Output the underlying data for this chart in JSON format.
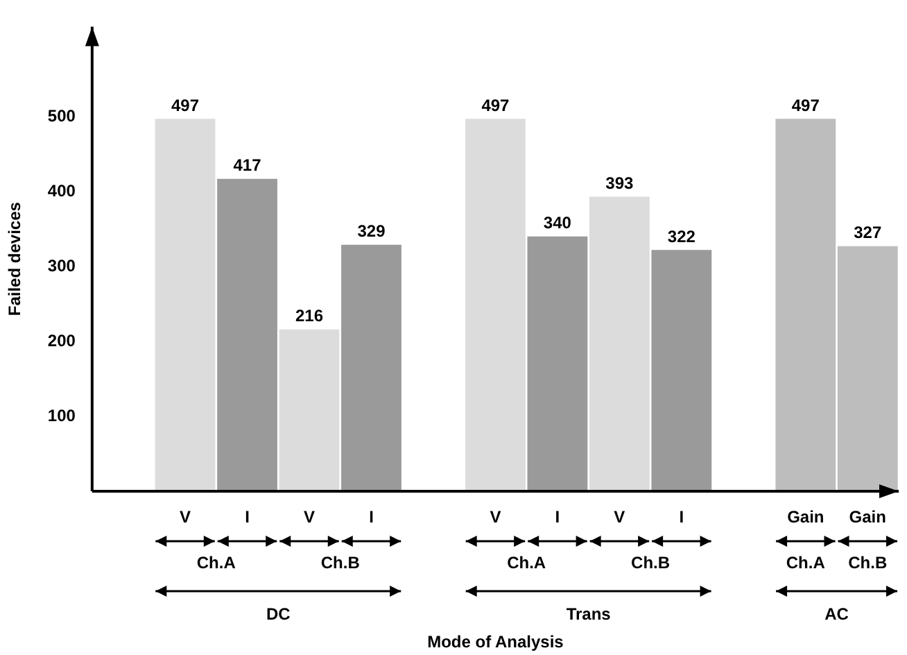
{
  "chart_data": {
    "type": "bar",
    "ylabel": "Failed devices",
    "categories": [
      null,
      "V",
      "I",
      "V",
      "I",
      null,
      "V",
      "I",
      "V",
      "I",
      null,
      "Gain",
      "Gain"
    ],
    "values": [
      null,
      497,
      417,
      216,
      329,
      null,
      497,
      340,
      393,
      322,
      null,
      497,
      327
    ],
    "colors": [
      null,
      "#dcdcdc",
      "#9a9a9a",
      "#dcdcdc",
      "#9a9a9a",
      null,
      "#dcdcdc",
      "#9a9a9a",
      "#dcdcdc",
      "#9a9a9a",
      null,
      "#bdbdbd",
      "#bdbdbd"
    ],
    "ylim": [
      0,
      620
    ],
    "yticks": [
      100,
      200,
      300,
      400,
      500
    ],
    "grid": false,
    "legend": false,
    "data_labels": true,
    "annotations": [
      "Ch.A",
      "Ch.B",
      "Ch.A",
      "Ch.B",
      "Ch.A",
      "Ch.B",
      "DC",
      "Trans",
      "AC",
      "Mode of Analysis"
    ]
  }
}
